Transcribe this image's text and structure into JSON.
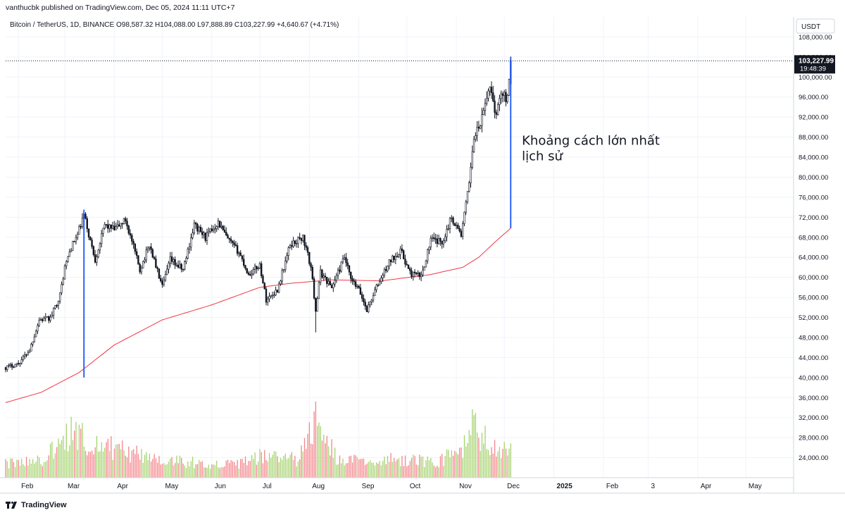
{
  "header": {
    "publisher_line": "vanthucbk published on TradingView.com, Dec 05, 2024 11:11 UTC+7"
  },
  "footer": {
    "brand": "TradingView",
    "logo_icon": "tradingview-logo-icon"
  },
  "chart_data": {
    "type": "candlestick",
    "legend": {
      "symbol": "Bitcoin / TetherUS, 1D, BINANCE",
      "open_label": "O",
      "open": "98,587.32",
      "high_label": "H",
      "high": "104,088.00",
      "low_label": "L",
      "low": "97,888.89",
      "close_label": "C",
      "close": "103,227.99",
      "change": "+4,640.67 (+4.71%)"
    },
    "currency": "USDT",
    "last_price": {
      "value": 103227.99,
      "label": "103,227.99",
      "countdown": "19:48:39"
    },
    "ylim": [
      20000,
      112000
    ],
    "y_ticks": [
      {
        "v": 24000,
        "label": "24,000.00"
      },
      {
        "v": 28000,
        "label": "28,000.00"
      },
      {
        "v": 32000,
        "label": "32,000.00"
      },
      {
        "v": 36000,
        "label": "36,000.00"
      },
      {
        "v": 40000,
        "label": "40,000.00"
      },
      {
        "v": 44000,
        "label": "44,000.00"
      },
      {
        "v": 48000,
        "label": "48,000.00"
      },
      {
        "v": 52000,
        "label": "52,000.00"
      },
      {
        "v": 56000,
        "label": "56,000.00"
      },
      {
        "v": 60000,
        "label": "60,000.00"
      },
      {
        "v": 64000,
        "label": "64,000.00"
      },
      {
        "v": 68000,
        "label": "68,000.00"
      },
      {
        "v": 72000,
        "label": "72,000.00"
      },
      {
        "v": 76000,
        "label": "76,000.00"
      },
      {
        "v": 80000,
        "label": "80,000.00"
      },
      {
        "v": 84000,
        "label": "84,000.00"
      },
      {
        "v": 88000,
        "label": "88,000.00"
      },
      {
        "v": 92000,
        "label": "92,000.00"
      },
      {
        "v": 96000,
        "label": "96,000.00"
      },
      {
        "v": 100000,
        "label": "100,000.00"
      },
      {
        "v": 104000,
        "label": "104,000.00"
      },
      {
        "v": 108000,
        "label": "108,000.00"
      }
    ],
    "x_ticks": [
      {
        "date": "2024-02-01",
        "label": "Feb",
        "bold": false
      },
      {
        "date": "2024-03-01",
        "label": "Mar",
        "bold": false
      },
      {
        "date": "2024-04-01",
        "label": "Apr",
        "bold": false
      },
      {
        "date": "2024-05-01",
        "label": "May",
        "bold": false
      },
      {
        "date": "2024-06-01",
        "label": "Jun",
        "bold": false
      },
      {
        "date": "2024-07-01",
        "label": "Jul",
        "bold": false
      },
      {
        "date": "2024-08-01",
        "label": "Aug",
        "bold": false
      },
      {
        "date": "2024-09-01",
        "label": "Sep",
        "bold": false
      },
      {
        "date": "2024-10-01",
        "label": "Oct",
        "bold": false
      },
      {
        "date": "2024-11-01",
        "label": "Nov",
        "bold": false
      },
      {
        "date": "2024-12-01",
        "label": "Dec",
        "bold": false
      },
      {
        "date": "2025-01-01",
        "label": "2025",
        "bold": true
      },
      {
        "date": "2025-02-01",
        "label": "Feb",
        "bold": false
      },
      {
        "date": "2025-03-01",
        "label": "3",
        "bold": false
      },
      {
        "date": "2025-04-01",
        "label": "Apr",
        "bold": false
      },
      {
        "date": "2025-05-01",
        "label": "May",
        "bold": false
      }
    ],
    "x_range": [
      "2024-01-24",
      "2025-05-31"
    ],
    "price_path": [
      [
        "2024-01-24",
        42000
      ],
      [
        "2024-02-01",
        42800
      ],
      [
        "2024-02-08",
        45500
      ],
      [
        "2024-02-14",
        51500
      ],
      [
        "2024-02-21",
        51800
      ],
      [
        "2024-02-27",
        56500
      ],
      [
        "2024-03-01",
        62000
      ],
      [
        "2024-03-05",
        66000
      ],
      [
        "2024-03-09",
        68500
      ],
      [
        "2024-03-13",
        72500
      ],
      [
        "2024-03-16",
        68500
      ],
      [
        "2024-03-20",
        63500
      ],
      [
        "2024-03-26",
        70500
      ],
      [
        "2024-04-01",
        69500
      ],
      [
        "2024-04-08",
        71500
      ],
      [
        "2024-04-13",
        66000
      ],
      [
        "2024-04-17",
        61500
      ],
      [
        "2024-04-23",
        66500
      ],
      [
        "2024-05-01",
        58000
      ],
      [
        "2024-05-06",
        63500
      ],
      [
        "2024-05-14",
        61500
      ],
      [
        "2024-05-21",
        70500
      ],
      [
        "2024-05-28",
        68000
      ],
      [
        "2024-06-05",
        71000
      ],
      [
        "2024-06-11",
        67500
      ],
      [
        "2024-06-18",
        65000
      ],
      [
        "2024-06-24",
        60500
      ],
      [
        "2024-07-01",
        62500
      ],
      [
        "2024-07-05",
        55500
      ],
      [
        "2024-07-12",
        57500
      ],
      [
        "2024-07-20",
        66500
      ],
      [
        "2024-07-28",
        68000
      ],
      [
        "2024-08-02",
        62000
      ],
      [
        "2024-08-05",
        53500
      ],
      [
        "2024-08-08",
        61000
      ],
      [
        "2024-08-15",
        58000
      ],
      [
        "2024-08-23",
        64000
      ],
      [
        "2024-08-27",
        59500
      ],
      [
        "2024-09-01",
        57500
      ],
      [
        "2024-09-06",
        53500
      ],
      [
        "2024-09-12",
        58000
      ],
      [
        "2024-09-20",
        63000
      ],
      [
        "2024-09-27",
        65500
      ],
      [
        "2024-10-03",
        60800
      ],
      [
        "2024-10-10",
        60200
      ],
      [
        "2024-10-16",
        67500
      ],
      [
        "2024-10-23",
        67000
      ],
      [
        "2024-10-29",
        72000
      ],
      [
        "2024-11-04",
        68500
      ],
      [
        "2024-11-08",
        76500
      ],
      [
        "2024-11-12",
        88000
      ],
      [
        "2024-11-16",
        90500
      ],
      [
        "2024-11-22",
        98500
      ],
      [
        "2024-11-26",
        92000
      ],
      [
        "2024-11-29",
        97500
      ],
      [
        "2024-12-02",
        95500
      ],
      [
        "2024-12-04",
        98587
      ],
      [
        "2024-12-05",
        103228
      ]
    ],
    "ma_path": [
      [
        "2024-01-24",
        35000
      ],
      [
        "2024-02-15",
        37000
      ],
      [
        "2024-03-10",
        41000
      ],
      [
        "2024-04-01",
        46500
      ],
      [
        "2024-05-01",
        51500
      ],
      [
        "2024-06-01",
        54500
      ],
      [
        "2024-07-01",
        58000
      ],
      [
        "2024-07-20",
        58800
      ],
      [
        "2024-08-15",
        59500
      ],
      [
        "2024-09-15",
        59300
      ],
      [
        "2024-10-15",
        60500
      ],
      [
        "2024-11-05",
        62000
      ],
      [
        "2024-11-15",
        64000
      ],
      [
        "2024-11-25",
        67000
      ],
      [
        "2024-12-05",
        69800
      ]
    ],
    "volume_path": [
      [
        "2024-01-24",
        0.25
      ],
      [
        "2024-02-15",
        0.3
      ],
      [
        "2024-03-05",
        0.75
      ],
      [
        "2024-03-15",
        0.65
      ],
      [
        "2024-04-15",
        0.4
      ],
      [
        "2024-05-15",
        0.28
      ],
      [
        "2024-06-15",
        0.22
      ],
      [
        "2024-07-05",
        0.4
      ],
      [
        "2024-07-25",
        0.3
      ],
      [
        "2024-08-05",
        0.95
      ],
      [
        "2024-08-20",
        0.28
      ],
      [
        "2024-09-10",
        0.3
      ],
      [
        "2024-10-01",
        0.32
      ],
      [
        "2024-10-20",
        0.28
      ],
      [
        "2024-11-05",
        0.5
      ],
      [
        "2024-11-12",
        0.82
      ],
      [
        "2024-11-22",
        0.6
      ],
      [
        "2024-12-05",
        0.45
      ]
    ],
    "volume_spikes": [
      {
        "date": "2024-08-05",
        "level": 1.0
      },
      {
        "date": "2024-11-11",
        "level": 0.9
      },
      {
        "date": "2024-11-13",
        "level": 0.85
      },
      {
        "date": "2024-03-05",
        "level": 0.8
      },
      {
        "date": "2024-03-12",
        "level": 0.72
      }
    ],
    "gap_lines": [
      {
        "date": "2024-03-13",
        "from": 73500,
        "to": 40000,
        "color": "#2962ff"
      },
      {
        "date": "2024-12-05",
        "from": 104000,
        "to": 69800,
        "color": "#2962ff"
      }
    ],
    "annotation": {
      "line1": "Khoảng cách lớn nhất",
      "line2": "lịch sử",
      "date": "2024-12-12",
      "price": 86500
    },
    "colors": {
      "up": "#131722",
      "down": "#131722",
      "ma": "#f23645",
      "vol_up": "#a5d36e",
      "vol_down": "#f4848a",
      "grid": "#f0f3fa",
      "axis_text": "#131722",
      "badge_bg": "#131722",
      "badge_text": "#ffffff",
      "gap_line": "#2962ff"
    }
  }
}
